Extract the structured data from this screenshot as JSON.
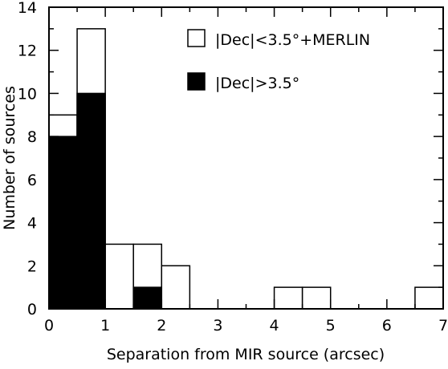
{
  "chart_data": {
    "type": "bar",
    "xlabel": "Separation from MIR source (arcsec)",
    "ylabel": "Number of sources",
    "xlim": [
      0,
      7
    ],
    "ylim": [
      0,
      14
    ],
    "xticks": [
      "0",
      "1",
      "2",
      "3",
      "4",
      "5",
      "6",
      "7"
    ],
    "yticks": [
      "0",
      "2",
      "4",
      "6",
      "8",
      "10",
      "12",
      "14"
    ],
    "bin_width": 0.5,
    "bin_starts": [
      0,
      0.5,
      1.0,
      1.5,
      2.0,
      2.5,
      3.0,
      3.5,
      4.0,
      4.5,
      5.0,
      5.5,
      6.0,
      6.5
    ],
    "series": [
      {
        "name": "|Dec|<3.5°+MERLIN",
        "fill": "#ffffff",
        "values": [
          9,
          13,
          3,
          3,
          2,
          0,
          0,
          0,
          1,
          1,
          0,
          0,
          0,
          1
        ]
      },
      {
        "name": "|Dec|>3.5°",
        "fill": "#000000",
        "values": [
          8,
          10,
          0,
          1,
          0,
          0,
          0,
          0,
          0,
          0,
          0,
          0,
          0,
          0
        ]
      }
    ],
    "legend_position": "top-right",
    "grid": false
  }
}
